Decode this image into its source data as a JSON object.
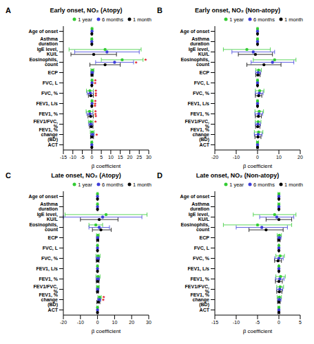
{
  "chart_data": [
    {
      "type": "scatter",
      "panel": "A",
      "title": "Early onset, NO₂ (Atopy)",
      "x_label": "β coefficient",
      "legend": "upper right",
      "categories": [
        "Age of onset",
        "Asthma duration",
        "IgE level, KU/L",
        "Eosinophils, count",
        "ECP",
        "FVC, L",
        "FVC, %",
        "FEV1, L/s",
        "FEV1, %",
        "FEV1/FVC, %",
        "FEV1, % change (BD)",
        "ACT"
      ],
      "xlim": [
        -15,
        30
      ],
      "xticks": [
        -15,
        -10,
        -5,
        0,
        5,
        10,
        15,
        20,
        25,
        30
      ],
      "series": [
        {
          "name": "1 year",
          "color": "#33cc33",
          "marker": "circle",
          "values": [
            0.1,
            0,
            7,
            16,
            0.3,
            0.1,
            -1,
            0.1,
            -1.2,
            -0.6,
            0.2,
            0
          ],
          "ci_low": [
            -0.3,
            -0.4,
            -12,
            5,
            -0.5,
            -0.3,
            -2.8,
            -0.3,
            -3,
            -1.8,
            -0.8,
            -0.4
          ],
          "ci_high": [
            0.5,
            0.4,
            26,
            27,
            1.1,
            0.5,
            0.8,
            0.5,
            0.6,
            0.6,
            1.2,
            0.4
          ],
          "annotations": [
            null,
            null,
            null,
            "*",
            null,
            "*",
            "*",
            "*",
            "*",
            "*",
            null,
            null
          ]
        },
        {
          "name": "6 months",
          "color": "#3d3dd9",
          "marker": "circle",
          "values": [
            0.1,
            0,
            8,
            12,
            0.2,
            0.1,
            -0.8,
            0.1,
            -1,
            -0.5,
            0.3,
            0
          ],
          "ci_low": [
            -0.2,
            -0.3,
            -9,
            2,
            -0.5,
            -0.2,
            -2.4,
            -0.2,
            -2.6,
            -1.6,
            -0.6,
            -0.3
          ],
          "ci_high": [
            0.4,
            0.3,
            25,
            22,
            0.9,
            0.4,
            0.8,
            0.4,
            0.6,
            0.6,
            1.2,
            0.3
          ],
          "annotations": [
            null,
            null,
            null,
            "*",
            null,
            "*",
            "*",
            "*",
            "*",
            null,
            "*",
            null
          ]
        },
        {
          "name": "1 month",
          "color": "#000000",
          "marker": "circle",
          "values": [
            0,
            0,
            1,
            7,
            0.1,
            0,
            -0.5,
            0,
            -0.6,
            -0.3,
            0.1,
            0
          ],
          "ci_low": [
            -0.3,
            -0.2,
            -11,
            -1,
            -0.4,
            -0.3,
            -1.8,
            -0.3,
            -2,
            -1.2,
            -0.7,
            -0.3
          ],
          "ci_high": [
            0.3,
            0.2,
            13,
            15,
            0.6,
            0.3,
            0.8,
            0.3,
            0.8,
            0.6,
            0.9,
            0.3
          ],
          "annotations": [
            null,
            null,
            null,
            null,
            null,
            null,
            "*",
            "*",
            "*",
            null,
            null,
            null
          ]
        }
      ]
    },
    {
      "type": "scatter",
      "panel": "B",
      "title": "Early onset, NO₂ (Non-atopy)",
      "x_label": "β coefficient",
      "legend": "upper right",
      "categories": [
        "Age of onset",
        "Asthma duration",
        "IgE level, KU/L",
        "Eosinophils, count",
        "ECP",
        "FVC, L",
        "FVC, %",
        "FEV1, L/s",
        "FEV1, %",
        "FEV1/FVC, %",
        "FEV1, % change (BD)",
        "ACT"
      ],
      "xlim": [
        -20,
        20
      ],
      "xticks": [
        -20,
        -10,
        0,
        10,
        20
      ],
      "series": [
        {
          "name": "1 year",
          "color": "#33cc33",
          "marker": "circle",
          "values": [
            0,
            0,
            -5,
            8,
            0.5,
            0,
            1,
            0,
            0.8,
            0.3,
            0.5,
            0
          ],
          "ci_low": [
            -0.3,
            -0.3,
            -16,
            -2,
            -0.8,
            -0.3,
            -1,
            -0.3,
            -1.2,
            -1,
            -1.5,
            -0.5
          ],
          "ci_high": [
            0.3,
            0.3,
            6,
            18,
            1.8,
            0.3,
            3,
            0.3,
            2.8,
            1.6,
            2.5,
            0.5
          ]
        },
        {
          "name": "6 months",
          "color": "#3d3dd9",
          "marker": "circle",
          "values": [
            0,
            0,
            -2,
            7,
            0.3,
            0,
            0.8,
            0,
            0.6,
            0.2,
            0.3,
            0
          ],
          "ci_low": [
            -0.2,
            -0.2,
            -12,
            -3,
            -0.9,
            -0.3,
            -1,
            -0.3,
            -1.2,
            -1,
            -1.5,
            -0.4
          ],
          "ci_high": [
            0.2,
            0.2,
            8,
            17,
            1.5,
            0.3,
            2.6,
            0.3,
            2.4,
            1.4,
            2.1,
            0.4
          ]
        },
        {
          "name": "1 month",
          "color": "#000000",
          "marker": "circle",
          "values": [
            0,
            0,
            -1,
            3,
            0.2,
            0,
            0.5,
            0,
            0.4,
            0.1,
            0.2,
            0
          ],
          "ci_low": [
            -0.2,
            -0.2,
            -9,
            -5,
            -0.8,
            -0.2,
            -1,
            -0.2,
            -1,
            -0.9,
            -1.2,
            -0.3
          ],
          "ci_high": [
            0.2,
            0.2,
            7,
            11,
            1.2,
            0.2,
            2,
            0.2,
            1.8,
            1.1,
            1.6,
            0.3
          ]
        }
      ]
    },
    {
      "type": "scatter",
      "panel": "C",
      "title": "Late onset, NO₂ (Atopy)",
      "x_label": "β coefficient",
      "legend": "upper right",
      "categories": [
        "Age of onset",
        "Asthma duration",
        "IgE level, KU/L",
        "Eosinophils, count",
        "ECP",
        "FVC, L",
        "FVC, %",
        "FEV1, L/s",
        "FEV1, %",
        "FEV1/FVC, %",
        "FEV1, % change (BD)",
        "ACT"
      ],
      "xlim": [
        -20,
        30
      ],
      "xticks": [
        -20,
        -10,
        0,
        10,
        20,
        30
      ],
      "series": [
        {
          "name": "1 year",
          "color": "#33cc33",
          "marker": "circle",
          "values": [
            0,
            0,
            5,
            -1,
            0.2,
            0,
            0.3,
            0,
            0.3,
            0.2,
            1.2,
            0
          ],
          "ci_low": [
            -0.3,
            -0.3,
            -19,
            -5,
            -0.6,
            -0.3,
            -0.9,
            -0.3,
            -0.9,
            -0.6,
            0.2,
            -0.4
          ],
          "ci_high": [
            0.3,
            0.3,
            29,
            3,
            1,
            0.3,
            1.5,
            0.3,
            1.5,
            1,
            2.2,
            0.4
          ],
          "annotations": [
            null,
            null,
            null,
            null,
            null,
            null,
            null,
            null,
            null,
            null,
            "*",
            null
          ]
        },
        {
          "name": "6 months",
          "color": "#3d3dd9",
          "marker": "circle",
          "values": [
            0,
            0,
            3,
            1,
            0.1,
            0,
            0.2,
            0,
            0.2,
            0.1,
            1,
            0
          ],
          "ci_low": [
            -0.2,
            -0.2,
            -20,
            -5,
            -0.6,
            -0.2,
            -0.8,
            -0.2,
            -0.8,
            -0.6,
            0.1,
            -0.3
          ],
          "ci_high": [
            0.2,
            0.2,
            26,
            7,
            0.8,
            0.2,
            1.2,
            0.2,
            1.2,
            0.8,
            1.9,
            0.3
          ],
          "annotations": [
            null,
            null,
            null,
            null,
            null,
            null,
            null,
            null,
            null,
            null,
            "*",
            null
          ]
        },
        {
          "name": "1 month",
          "color": "#000000",
          "marker": "circle",
          "values": [
            0,
            0,
            1,
            2,
            0.1,
            0,
            0.1,
            0,
            0.1,
            0,
            0.5,
            0
          ],
          "ci_low": [
            -0.2,
            -0.2,
            -10,
            -3,
            -0.5,
            -0.2,
            -0.7,
            -0.2,
            -0.7,
            -0.5,
            -0.4,
            -0.3
          ],
          "ci_high": [
            0.2,
            0.2,
            12,
            8,
            0.7,
            0.2,
            0.9,
            0.2,
            0.9,
            0.5,
            1.4,
            0.3
          ]
        }
      ]
    },
    {
      "type": "scatter",
      "panel": "D",
      "title": "Late onset, NO₂ (Non-atopy)",
      "x_label": "β coefficient",
      "legend": "upper right",
      "categories": [
        "Age of onset",
        "Asthma duration",
        "IgE level, KU/L",
        "Eosinophils, count",
        "ECP",
        "FVC, L",
        "FVC, %",
        "FEV1, L/s",
        "FEV1, %",
        "FEV1/FVC, %",
        "FEV1, % change (BD)",
        "ACT"
      ],
      "xlim": [
        -15,
        5
      ],
      "xticks": [
        -15,
        -10,
        -5,
        0,
        5
      ],
      "series": [
        {
          "name": "1 year",
          "color": "#33cc33",
          "marker": "circle",
          "values": [
            0,
            0,
            -1,
            -5,
            0.1,
            0,
            0.3,
            0,
            0.4,
            0.3,
            0.1,
            0
          ],
          "ci_low": [
            -0.2,
            -0.2,
            -6,
            -13,
            -0.4,
            -0.1,
            -0.7,
            -0.1,
            -0.7,
            -0.5,
            -0.4,
            -0.2
          ],
          "ci_high": [
            0.2,
            0.2,
            4,
            3,
            0.6,
            0.1,
            1.3,
            0.1,
            1.5,
            1.1,
            0.6,
            0.2
          ]
        },
        {
          "name": "6 months",
          "color": "#3d3dd9",
          "marker": "circle",
          "values": [
            0,
            0,
            -0.5,
            -4,
            0.1,
            0,
            0,
            0,
            0.2,
            0.2,
            0.1,
            0
          ],
          "ci_low": [
            -0.2,
            -0.2,
            -4.5,
            -10,
            -0.3,
            -0.1,
            -1,
            -0.1,
            -0.8,
            -0.5,
            -0.3,
            -0.2
          ],
          "ci_high": [
            0.2,
            0.2,
            3.5,
            2,
            0.5,
            0.1,
            1,
            0.1,
            1.2,
            0.9,
            0.5,
            0.2
          ]
        },
        {
          "name": "1 month",
          "color": "#000000",
          "marker": "circle",
          "values": [
            0,
            0,
            0,
            -3,
            0,
            0,
            -0.2,
            0,
            0,
            0.1,
            0,
            0
          ],
          "ci_low": [
            -0.1,
            -0.1,
            -3,
            -7,
            -0.3,
            -0.1,
            -1,
            -0.1,
            -0.8,
            -0.5,
            -0.3,
            -0.2
          ],
          "ci_high": [
            0.1,
            0.1,
            3,
            1,
            0.3,
            0.1,
            0.6,
            0.1,
            0.8,
            0.7,
            0.3,
            0.2
          ]
        }
      ]
    }
  ]
}
